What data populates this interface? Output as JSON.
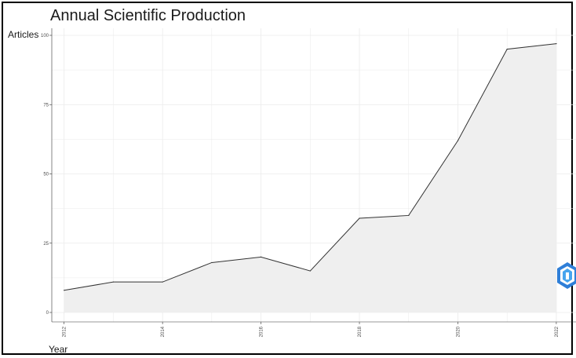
{
  "chart_data": {
    "type": "area",
    "title": "Annual Scientific Production",
    "xlabel": "Year",
    "ylabel": "Articles",
    "x": [
      2012,
      2013,
      2014,
      2015,
      2016,
      2017,
      2018,
      2019,
      2020,
      2021,
      2022
    ],
    "y": [
      8,
      11,
      11,
      18,
      20,
      15,
      34,
      35,
      62,
      95,
      97
    ],
    "xticks": [
      "2012",
      "2014",
      "2016",
      "2018",
      "2020",
      "2022"
    ],
    "yticks": [
      "0",
      "25",
      "50",
      "75",
      "100"
    ],
    "xlim": [
      2011.75,
      2022.4
    ],
    "ylim": [
      0,
      100
    ],
    "grid": true,
    "legend": "none",
    "colors": {
      "line": "#333333",
      "fill": "#efefef",
      "grid": "#ebebeb",
      "axis": "#333333"
    }
  }
}
